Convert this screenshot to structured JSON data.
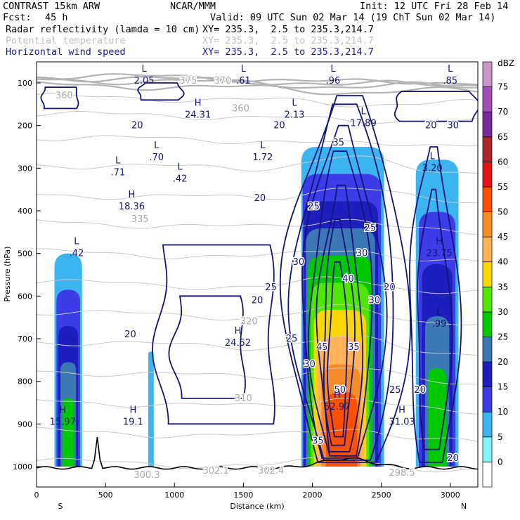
{
  "header": {
    "model": "CONTRAST 15km ARW",
    "source": "NCAR/MMM",
    "init": "Init: 12 UTC Fri 28 Feb 14",
    "fcst_label": "Fcst:",
    "fcst_value": "45 h",
    "valid": "Valid: 09 UTC Sun 02 Mar 14 (19 ChT Sun 02 Mar 14)",
    "fields": [
      {
        "name": "Radar reflectivity (lamda = 10 cm)",
        "xy": "XY= 235.3,  2.5 to 235.3,214.7"
      },
      {
        "name": "Potential temperature",
        "xy": "XY= 235.3,  2.5 to 235.3,214.7"
      },
      {
        "name": "Horizontal wind speed",
        "xy": "XY= 235.3,  2.5 to 235.3,214.7"
      }
    ]
  },
  "chart_data": {
    "type": "heatmap",
    "xlabel": "Distance (km)",
    "ylabel": "Pressure (hPa)",
    "xlim": [
      0,
      3200
    ],
    "ylim": [
      1050,
      70
    ],
    "x_ticks": [
      0,
      500,
      1000,
      1500,
      2000,
      2500,
      3000
    ],
    "y_ticks": [
      100,
      200,
      300,
      400,
      500,
      600,
      700,
      800,
      900,
      1000
    ],
    "x_end_labels": {
      "left": "S",
      "right": "N"
    },
    "colorbar": {
      "unit": "dBZ",
      "levels": [
        0,
        5,
        10,
        15,
        20,
        25,
        30,
        35,
        40,
        45,
        50,
        55,
        60,
        65,
        70,
        75
      ],
      "colors": [
        "#ffffff",
        "#7ff5f5",
        "#3cb4f0",
        "#3c3ce8",
        "#1e1ebe",
        "#3c78b4",
        "#00c800",
        "#50e600",
        "#fad700",
        "#ffb45a",
        "#f58c28",
        "#ff5000",
        "#e61414",
        "#aa2828",
        "#7a2c9a",
        "#a050b4",
        "#c896c8"
      ]
    },
    "reflectivity_cells": [
      {
        "x": [
          130,
          330
        ],
        "p_top": 500,
        "max_dbz": 25
      },
      {
        "x": [
          810,
          850
        ],
        "p_top": 730,
        "max_dbz": 5
      },
      {
        "x": [
          1920,
          2520
        ],
        "p_top": 250,
        "max_dbz": 50
      },
      {
        "x": [
          2750,
          3060
        ],
        "p_top": 280,
        "max_dbz": 25
      }
    ],
    "wind_speed_labels": [
      {
        "text": "20",
        "x": 680,
        "p": 690
      },
      {
        "text": "20",
        "x": 1620,
        "p": 370
      },
      {
        "text": "20",
        "x": 1760,
        "p": 200
      },
      {
        "text": "20",
        "x": 1600,
        "p": 610
      },
      {
        "text": "25",
        "x": 1700,
        "p": 580
      },
      {
        "text": "30",
        "x": 1900,
        "p": 520
      },
      {
        "text": "25",
        "x": 1850,
        "p": 700
      },
      {
        "text": "30",
        "x": 1980,
        "p": 760
      },
      {
        "text": "45",
        "x": 2070,
        "p": 720
      },
      {
        "text": "50",
        "x": 2200,
        "p": 820
      },
      {
        "text": "40",
        "x": 2260,
        "p": 560
      },
      {
        "text": "35",
        "x": 2300,
        "p": 720
      },
      {
        "text": "30",
        "x": 2360,
        "p": 500
      },
      {
        "text": "25",
        "x": 2420,
        "p": 440
      },
      {
        "text": "30",
        "x": 2450,
        "p": 610
      },
      {
        "text": "35",
        "x": 2190,
        "p": 240
      },
      {
        "text": "25",
        "x": 2010,
        "p": 390
      },
      {
        "text": "20",
        "x": 2560,
        "p": 580
      },
      {
        "text": "25",
        "x": 2600,
        "p": 820
      },
      {
        "text": "20",
        "x": 2780,
        "p": 820
      },
      {
        "text": "20",
        "x": 2860,
        "p": 200
      },
      {
        "text": "30",
        "x": 3020,
        "p": 200
      },
      {
        "text": "20",
        "x": 3020,
        "p": 980
      },
      {
        "text": "20",
        "x": 730,
        "p": 200
      },
      {
        "text": "35",
        "x": 2040,
        "p": 940
      }
    ],
    "theta_labels": [
      {
        "text": "375",
        "x": 1100,
        "p": 95
      },
      {
        "text": "370",
        "x": 1350,
        "p": 95
      },
      {
        "text": "360",
        "x": 200,
        "p": 130
      },
      {
        "text": "360",
        "x": 1480,
        "p": 160
      },
      {
        "text": "335",
        "x": 750,
        "p": 420
      },
      {
        "text": "320",
        "x": 1540,
        "p": 660
      },
      {
        "text": "310",
        "x": 1500,
        "p": 840
      },
      {
        "text": "300.3",
        "x": 800,
        "p": 1020
      },
      {
        "text": "302.1",
        "x": 1300,
        "p": 1010
      },
      {
        "text": "302.4",
        "x": 1700,
        "p": 1010
      },
      {
        "text": "298.5",
        "x": 2650,
        "p": 1015
      }
    ],
    "extrema": [
      {
        "type": "L",
        "value": "2.05",
        "x": 780,
        "p": 95
      },
      {
        "type": "L",
        "value": ".61",
        "x": 1500,
        "p": 95
      },
      {
        "type": "L",
        "value": ".96",
        "x": 2150,
        "p": 95
      },
      {
        "type": "L",
        "value": ".85",
        "x": 3000,
        "p": 95
      },
      {
        "type": "H",
        "value": "24.31",
        "x": 1170,
        "p": 175
      },
      {
        "type": "L",
        "value": "2.13",
        "x": 1870,
        "p": 175
      },
      {
        "type": "L",
        "value": "17.89",
        "x": 2370,
        "p": 195
      },
      {
        "type": "L",
        "value": ".70",
        "x": 870,
        "p": 275
      },
      {
        "type": "L",
        "value": "1.72",
        "x": 1640,
        "p": 275
      },
      {
        "type": "L",
        "value": ".71",
        "x": 590,
        "p": 310
      },
      {
        "type": "L",
        "value": ".42",
        "x": 1040,
        "p": 325
      },
      {
        "type": "L",
        "value": "3.20",
        "x": 2870,
        "p": 300
      },
      {
        "type": "H",
        "value": "18.36",
        "x": 690,
        "p": 390
      },
      {
        "type": "L",
        "value": ".42",
        "x": 290,
        "p": 500
      },
      {
        "type": "H",
        "value": "23.75",
        "x": 2920,
        "p": 500
      },
      {
        "type": "L",
        "value": ".99",
        "x": 2920,
        "p": 665
      },
      {
        "type": "H",
        "value": "24.52",
        "x": 1460,
        "p": 710
      },
      {
        "type": "H",
        "value": "52.97",
        "x": 2180,
        "p": 860
      },
      {
        "type": "H",
        "value": "31.03",
        "x": 2650,
        "p": 895
      },
      {
        "type": "H",
        "value": "15.97",
        "x": 190,
        "p": 895
      },
      {
        "type": "H",
        "value": "19.1",
        "x": 700,
        "p": 895
      }
    ]
  }
}
